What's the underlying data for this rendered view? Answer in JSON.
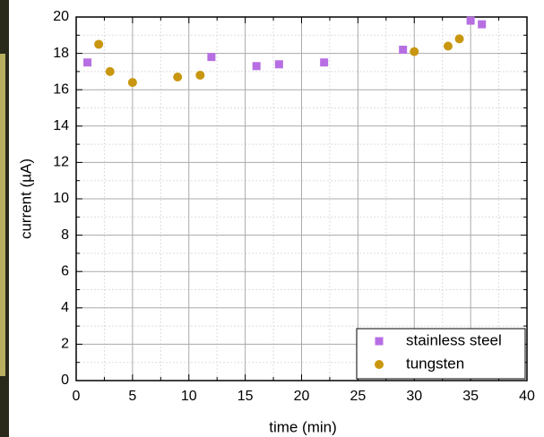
{
  "chart_data": {
    "type": "scatter",
    "xlabel": "time (min)",
    "ylabel": "current (µA)",
    "xlim": [
      0,
      40
    ],
    "xticks": [
      0,
      5,
      10,
      15,
      20,
      25,
      30,
      35,
      40
    ],
    "ylim": [
      0,
      20
    ],
    "yticks": [
      0,
      2,
      4,
      6,
      8,
      10,
      12,
      14,
      16,
      18,
      20
    ],
    "grid": true,
    "legend": "lower right",
    "series": [
      {
        "name": "stainless steel",
        "color": "#b76ee3",
        "marker": "square",
        "x": [
          1,
          12,
          16,
          18,
          22,
          29,
          35,
          36
        ],
        "values": [
          17.5,
          17.8,
          17.3,
          17.4,
          17.5,
          18.2,
          19.8,
          19.6
        ]
      },
      {
        "name": "tungsten",
        "color": "#c9960f",
        "marker": "circle",
        "x": [
          2,
          3,
          5,
          9,
          11,
          30,
          33,
          34
        ],
        "values": [
          18.5,
          17.0,
          16.4,
          16.7,
          16.8,
          18.1,
          18.4,
          18.8
        ]
      }
    ]
  }
}
